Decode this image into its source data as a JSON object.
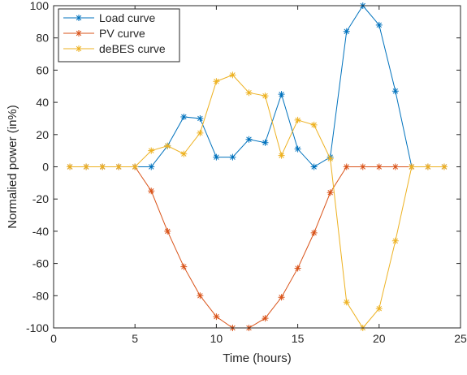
{
  "chart_data": {
    "type": "line",
    "title": "",
    "xlabel": "Time (hours)",
    "ylabel": "Normalied power (in%)",
    "xlim": [
      0,
      25
    ],
    "ylim": [
      -100,
      100
    ],
    "xticks": [
      0,
      5,
      10,
      15,
      20,
      25
    ],
    "yticks": [
      -100,
      -80,
      -60,
      -40,
      -20,
      0,
      20,
      40,
      60,
      80,
      100
    ],
    "grid": false,
    "legend_position": "top-left",
    "x": [
      1,
      2,
      3,
      4,
      5,
      6,
      7,
      8,
      9,
      10,
      11,
      12,
      13,
      14,
      15,
      16,
      17,
      18,
      19,
      20,
      21,
      22,
      23,
      24
    ],
    "series": [
      {
        "name": "Load curve",
        "color": "#0072BD",
        "marker": "asterisk",
        "values": [
          0,
          0,
          0,
          0,
          0,
          0,
          13,
          31,
          30,
          6,
          6,
          17,
          15,
          45,
          11,
          0,
          6,
          84,
          100,
          88,
          47,
          0,
          0,
          0
        ]
      },
      {
        "name": "PV curve",
        "color": "#D95319",
        "marker": "asterisk",
        "values": [
          0,
          0,
          0,
          0,
          0,
          -15,
          -40,
          -62,
          -80,
          -93,
          -100,
          -100,
          -94,
          -81,
          -63,
          -41,
          -16,
          0,
          0,
          0,
          0,
          0,
          0,
          0
        ]
      },
      {
        "name": "deBES curve",
        "color": "#EDB120",
        "marker": "asterisk",
        "values": [
          0,
          0,
          0,
          0,
          0,
          10,
          13,
          8,
          21,
          53,
          57,
          46,
          44,
          7,
          29,
          26,
          5,
          -84,
          -100,
          -88,
          -46,
          0,
          0,
          0
        ]
      }
    ]
  }
}
